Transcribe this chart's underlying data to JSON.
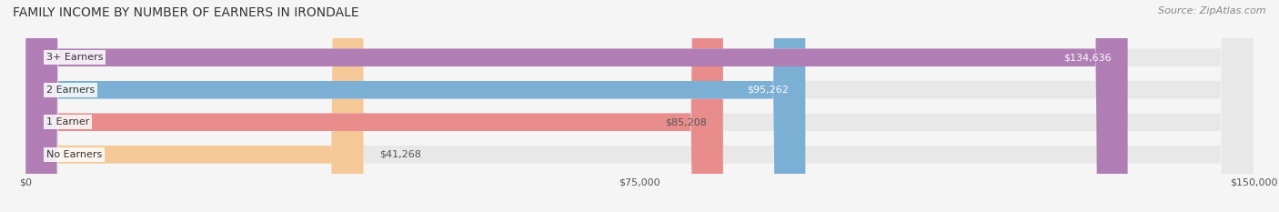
{
  "title": "FAMILY INCOME BY NUMBER OF EARNERS IN IRONDALE",
  "source": "Source: ZipAtlas.com",
  "categories": [
    "No Earners",
    "1 Earner",
    "2 Earners",
    "3+ Earners"
  ],
  "values": [
    41268,
    85208,
    95262,
    134636
  ],
  "bar_colors": [
    "#f5c897",
    "#e88c8c",
    "#7bafd4",
    "#b07db5"
  ],
  "bar_bg_color": "#e8e8e8",
  "value_labels": [
    "$41,268",
    "$85,208",
    "$95,262",
    "$134,636"
  ],
  "label_colors": [
    "#555555",
    "#555555",
    "#ffffff",
    "#ffffff"
  ],
  "xlim": [
    0,
    150000
  ],
  "xticks": [
    0,
    75000,
    150000
  ],
  "xtick_labels": [
    "$0",
    "$75,000",
    "$150,000"
  ],
  "background_color": "#f5f5f5",
  "title_fontsize": 10,
  "source_fontsize": 8,
  "bar_label_fontsize": 8,
  "category_fontsize": 8,
  "tick_fontsize": 8
}
